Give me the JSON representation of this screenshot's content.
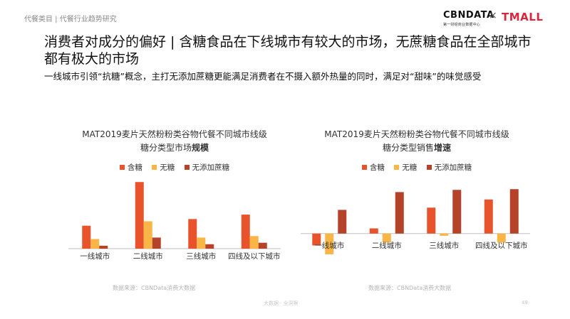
{
  "breadcrumb": "代餐类目 | 代餐行业趋势研究",
  "logo": {
    "cbn": "CBNDATA",
    "cbn_sub": "第一财经商业数据中心",
    "x": "×",
    "tmall": "TMALL"
  },
  "title": "消费者对成分的偏好 | 含糖食品在下线城市有较大的市场，无蔗糖食品在全部城市都有极大的市场",
  "subtitle": "一线城市引领“抗糖”概念，主打无添加蔗糖更能满足消费者在不摄入额外热量的同时，满足对“甜味”的味觉感受",
  "colors": {
    "sugar": "#e8532b",
    "nosugar": "#f9b546",
    "noaddedsugar": "#b5432a"
  },
  "legend": [
    "含糖",
    "无糖",
    "无添加蔗糖"
  ],
  "chart_data": [
    {
      "type": "bar",
      "title_line1": "MAT2019麦片天然粉粉类谷物代餐不同城市线级",
      "title_line2_prefix": "糖分类型市场",
      "title_line2_bold": "规模",
      "categories": [
        "一线城市",
        "二线城市",
        "三线城市",
        "四线及以下城市"
      ],
      "series": [
        {
          "name": "含糖",
          "values": [
            31,
            90,
            40,
            46
          ]
        },
        {
          "name": "无糖",
          "values": [
            13,
            37,
            15,
            17
          ]
        },
        {
          "name": "无添加蔗糖",
          "values": [
            4,
            15,
            6,
            8
          ]
        }
      ],
      "ylim": [
        0,
        95
      ],
      "source": "数据来源：CBNData消费大数据"
    },
    {
      "type": "bar",
      "title_line1": "MAT2019麦片天然粉粉类谷物代餐不同城市线级",
      "title_line2_prefix": "糖分类型销售",
      "title_line2_bold": "增速",
      "categories": [
        "一线城市",
        "二线城市",
        "三线城市",
        "四线及以下城市"
      ],
      "series": [
        {
          "name": "含糖",
          "values": [
            -16,
            7,
            35,
            46
          ]
        },
        {
          "name": "无糖",
          "values": [
            -28,
            -12,
            -3,
            -12
          ]
        },
        {
          "name": "无添加蔗糖",
          "values": [
            32,
            56,
            59,
            60
          ]
        }
      ],
      "ylim": [
        -30,
        65
      ],
      "source": "数据来源：CBNData消费大数据"
    }
  ],
  "footer": "大数据 · 全洞察",
  "page_number": "49"
}
